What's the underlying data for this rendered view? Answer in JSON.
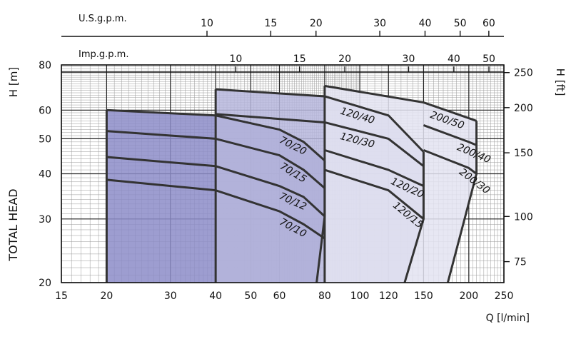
{
  "chart_data": {
    "type": "area",
    "x_scale": "log",
    "y_scale": "log",
    "xlabel": "Q [l/min]",
    "ylabel_left_unit": "H [m]",
    "ylabel_left": "TOTAL HEAD",
    "ylabel_right": "H [ft]",
    "xlim": [
      15,
      250
    ],
    "ylim": [
      20,
      80
    ],
    "x_ticks": [
      15,
      20,
      30,
      40,
      50,
      60,
      80,
      100,
      120,
      150,
      200,
      250
    ],
    "y_ticks": [
      20,
      30,
      40,
      50,
      60,
      80
    ],
    "right_axis": {
      "label": "H [ft]",
      "ticks": [
        75,
        100,
        150,
        200,
        250
      ]
    },
    "top_axes": [
      {
        "label": "U.S.g.p.m.",
        "ticks": [
          10,
          15,
          20,
          30,
          40,
          50,
          60
        ]
      },
      {
        "label": "Imp.g.p.m.",
        "ticks": [
          10,
          15,
          20,
          30,
          40,
          50
        ]
      }
    ],
    "zones": [
      {
        "min_q": 20,
        "max_q": 80,
        "color": "#8c8cc8",
        "boundary": [
          [
            80,
            30.5
          ],
          [
            76,
            20
          ]
        ],
        "curves": [
          {
            "label": "70/20",
            "points": [
              [
                20,
                60
              ],
              [
                40,
                58
              ],
              [
                60,
                53
              ],
              [
                70,
                49
              ],
              [
                80,
                43.5
              ]
            ]
          },
          {
            "label": "70/15",
            "points": [
              [
                20,
                52.5
              ],
              [
                40,
                50
              ],
              [
                60,
                45
              ],
              [
                70,
                41
              ],
              [
                80,
                36.5
              ]
            ]
          },
          {
            "label": "70/12",
            "points": [
              [
                20,
                44.5
              ],
              [
                40,
                42
              ],
              [
                60,
                37
              ],
              [
                70,
                34.5
              ],
              [
                80,
                30.5
              ]
            ]
          },
          {
            "label": "70/10",
            "points": [
              [
                20,
                38.5
              ],
              [
                40,
                36
              ],
              [
                60,
                31.5
              ],
              [
                70,
                29
              ],
              [
                80,
                26.5
              ]
            ]
          }
        ]
      },
      {
        "min_q": 40,
        "max_q": 150,
        "color": "#b6b6dc",
        "boundary": [
          [
            150,
            30
          ],
          [
            133,
            20
          ]
        ],
        "curves": [
          {
            "label": "120/40",
            "points": [
              [
                40,
                68.5
              ],
              [
                80,
                65.5
              ],
              [
                120,
                58
              ],
              [
                150,
                46
              ]
            ]
          },
          {
            "label": "120/30",
            "points": [
              [
                40,
                58.5
              ],
              [
                80,
                55.5
              ],
              [
                120,
                50
              ],
              [
                150,
                42
              ]
            ]
          },
          {
            "label": "120/20",
            "points": [
              [
                80,
                46.5
              ],
              [
                120,
                41
              ],
              [
                150,
                37
              ]
            ]
          },
          {
            "label": "120/15",
            "points": [
              [
                80,
                41
              ],
              [
                120,
                36
              ],
              [
                150,
                30
              ]
            ]
          }
        ]
      },
      {
        "min_q": 80,
        "max_q": 210,
        "color": "#e3e3f1",
        "boundary": [
          [
            210,
            40
          ],
          [
            175,
            20
          ]
        ],
        "curves": [
          {
            "label": "200/50",
            "points": [
              [
                80,
                70
              ],
              [
                150,
                63
              ],
              [
                200,
                57
              ],
              [
                210,
                56
              ]
            ]
          },
          {
            "label": "200/40",
            "points": [
              [
                150,
                54.5
              ],
              [
                200,
                49
              ],
              [
                210,
                48
              ]
            ]
          },
          {
            "label": "200/30",
            "points": [
              [
                150,
                46.5
              ],
              [
                200,
                41.5
              ],
              [
                210,
                40
              ]
            ]
          }
        ]
      }
    ]
  }
}
